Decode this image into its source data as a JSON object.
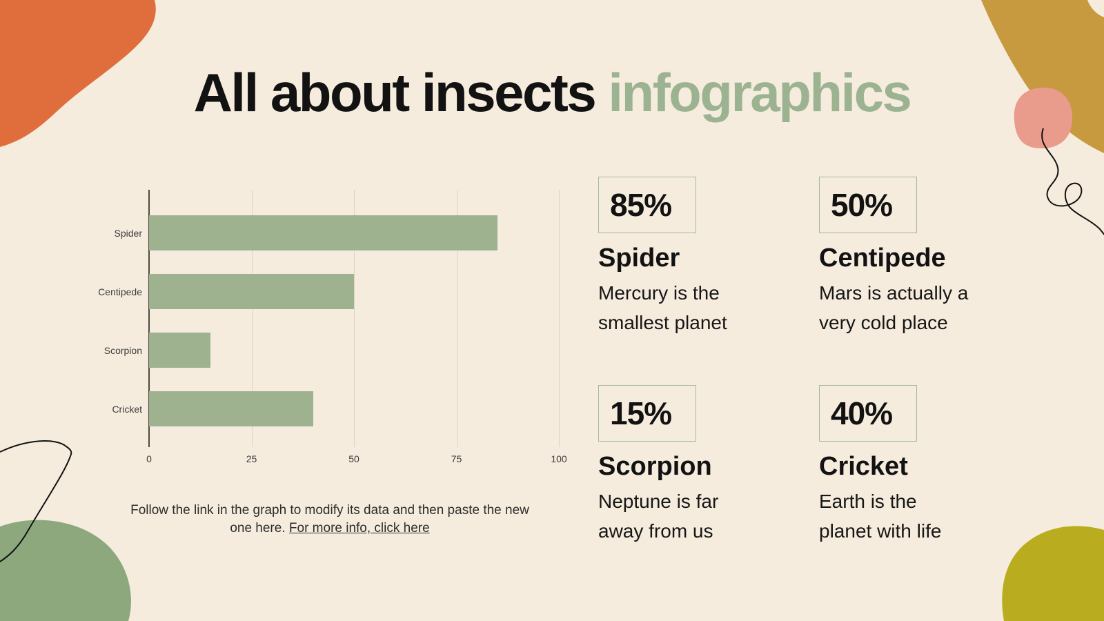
{
  "slide": {
    "title_black": "All about insects",
    "title_green": "infographics"
  },
  "note": {
    "line1": "Follow the link in the graph to modify its data and then paste the new",
    "line2_prefix": "one here. ",
    "link": "For more info, click here"
  },
  "chart_data": {
    "type": "bar",
    "orientation": "horizontal",
    "categories": [
      "Spider",
      "Centipede",
      "Scorpion",
      "Cricket"
    ],
    "values": [
      85,
      50,
      15,
      40
    ],
    "xticks": [
      0,
      25,
      50,
      75,
      100
    ],
    "xlim": [
      0,
      100
    ],
    "title": "",
    "xlabel": "",
    "ylabel": "",
    "grid": "vertical gridlines at each x tick",
    "legend": "none",
    "bar_color": "#9eb290"
  },
  "stats": [
    {
      "percent": "85%",
      "name": "Spider",
      "description": "Mercury is the\nsmallest planet"
    },
    {
      "percent": "50%",
      "name": "Centipede",
      "description": "Mars is actually a\nvery cold place"
    },
    {
      "percent": "15%",
      "name": "Scorpion",
      "description": "Neptune is far\naway from us"
    },
    {
      "percent": "40%",
      "name": "Cricket",
      "description": "Earth is the\nplanet with life"
    }
  ],
  "colors": {
    "bg": "#f5ecdd",
    "ink": "#121212",
    "green_text": "#9cb392",
    "bar_green": "#9eb290",
    "box_border": "#a3b995",
    "grid_line": "#ddd3c1",
    "axis_line": "#4c4a44",
    "orange_blob": "#e06e3d",
    "ochre_blob": "#c79a3f",
    "pink_blob": "#e99b8c",
    "olive_blob": "#b9ad1f",
    "sage_blob": "#8ea87e"
  }
}
